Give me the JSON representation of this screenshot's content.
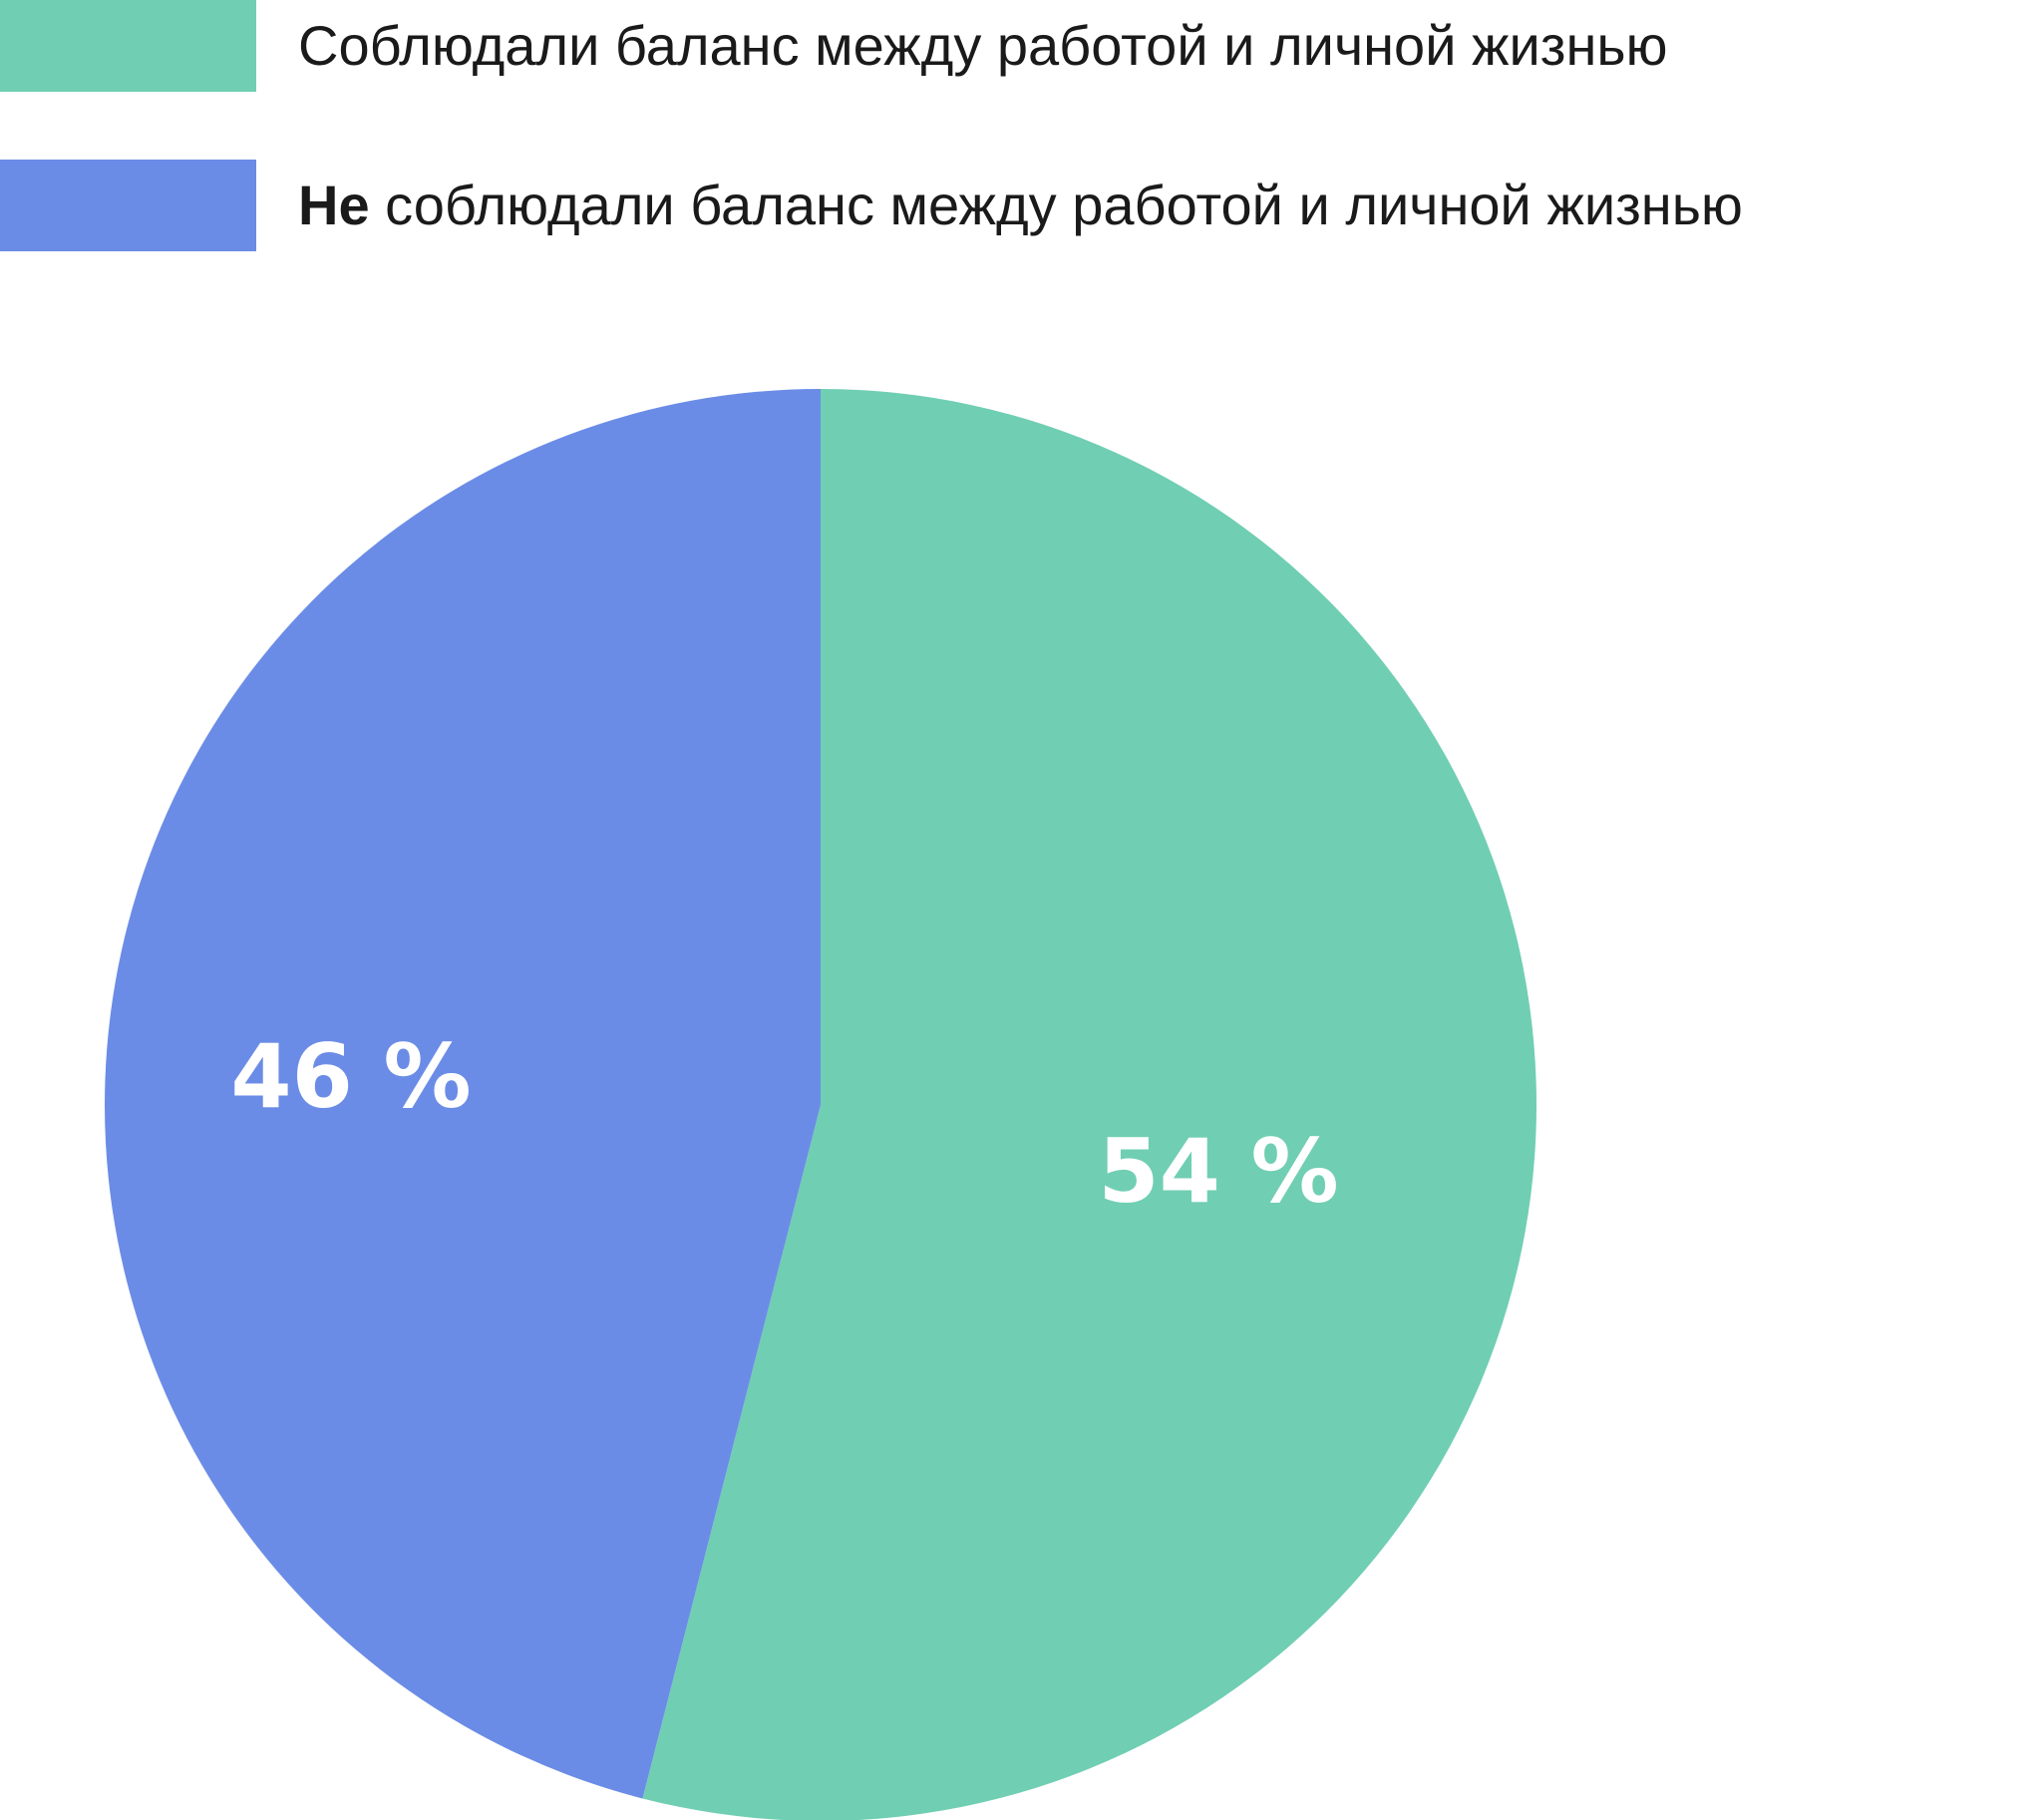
{
  "chart_data": {
    "type": "pie",
    "title": "",
    "start_angle_deg": 0,
    "direction": "clockwise",
    "legend_position": "top-left",
    "slices": [
      {
        "name": "Соблюдали баланс между работой и личной жизнью",
        "value": 54,
        "label": "54 %",
        "color": "#70CEB3"
      },
      {
        "name_bold": "Не",
        "name_rest": " соблюдали баланс между работой и личной жизнью",
        "value": 46,
        "label": "46 %",
        "color": "#6B8CE6"
      }
    ]
  }
}
